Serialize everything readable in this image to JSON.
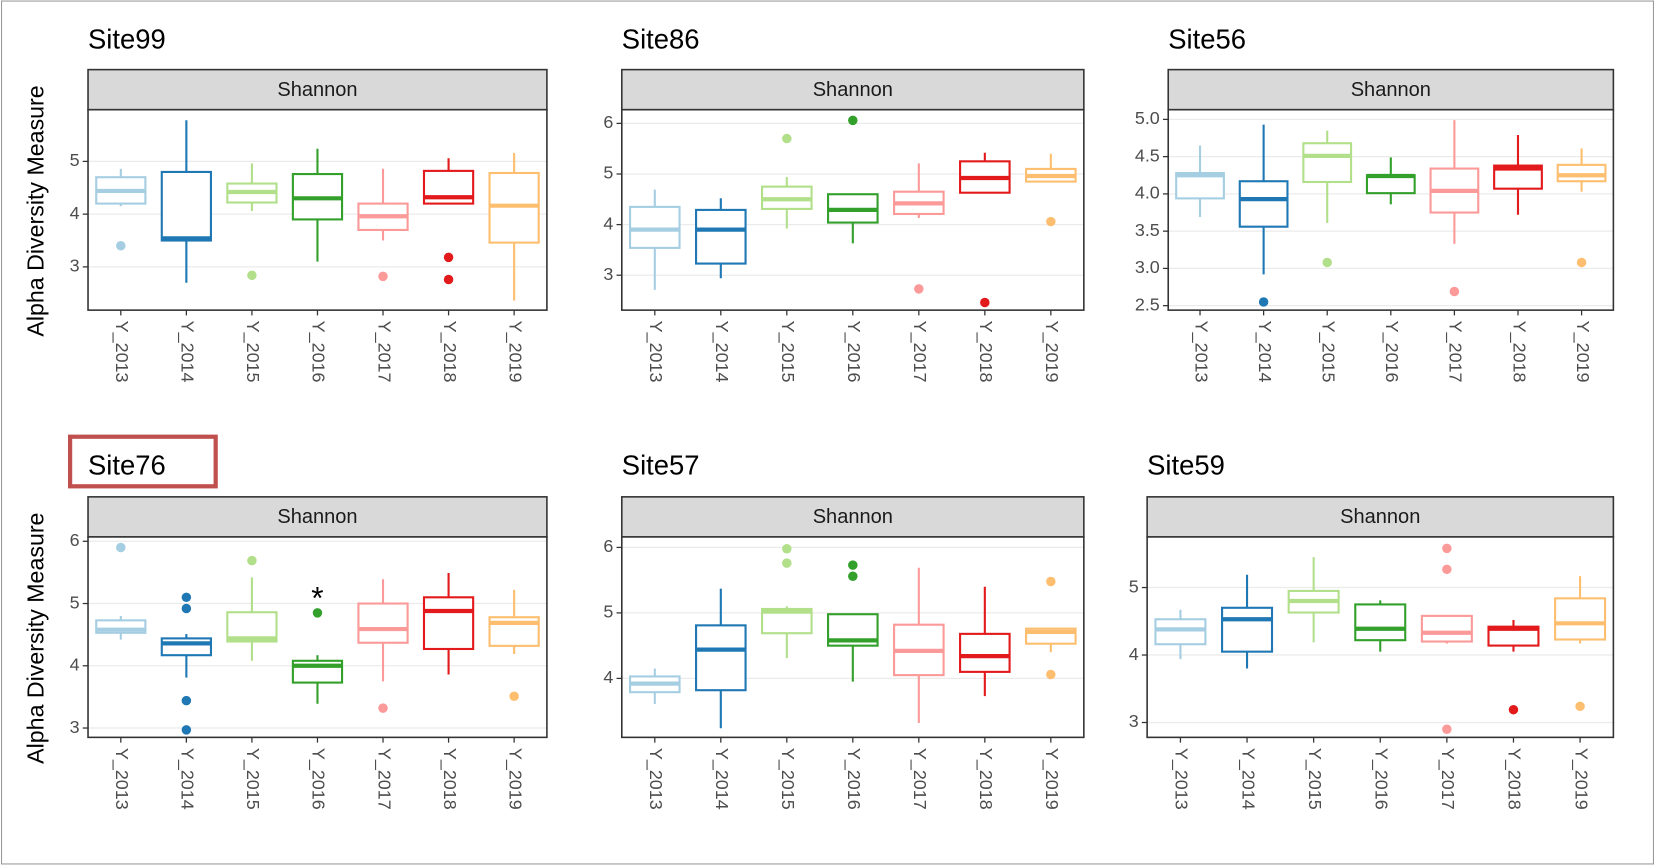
{
  "chart_data": [
    {
      "type": "box",
      "title": "Site99",
      "facet": "Shannon",
      "y_label": "Alpha Diversity Measure",
      "categories": [
        "Y_2013",
        "Y_2014",
        "Y_2015",
        "Y_2016",
        "Y_2017",
        "Y_2018",
        "Y_2019"
      ],
      "colors": [
        "#a6cee3",
        "#1f78b4",
        "#b2df8a",
        "#33a02c",
        "#fb9a99",
        "#e31a1c",
        "#fdbf6f"
      ],
      "ylim": [
        2.18,
        5.98
      ],
      "yticks": [
        3,
        4,
        5
      ],
      "grid": true,
      "boxes": [
        {
          "low": 4.15,
          "q1": 4.2,
          "median": 4.44,
          "q3": 4.7,
          "high": 4.86,
          "outliers": [
            3.4
          ]
        },
        {
          "low": 2.7,
          "q1": 3.5,
          "median": 3.54,
          "q3": 4.8,
          "high": 5.78,
          "outliers": []
        },
        {
          "low": 4.06,
          "q1": 4.22,
          "median": 4.42,
          "q3": 4.58,
          "high": 4.96,
          "outliers": [
            2.84
          ]
        },
        {
          "low": 3.1,
          "q1": 3.9,
          "median": 4.3,
          "q3": 4.76,
          "high": 5.24,
          "outliers": []
        },
        {
          "low": 3.5,
          "q1": 3.7,
          "median": 3.96,
          "q3": 4.2,
          "high": 4.86,
          "outliers": [
            2.82
          ]
        },
        {
          "low": 4.2,
          "q1": 4.2,
          "median": 4.32,
          "q3": 4.82,
          "high": 5.06,
          "outliers": [
            3.18,
            2.76
          ]
        },
        {
          "low": 2.36,
          "q1": 3.46,
          "median": 4.16,
          "q3": 4.78,
          "high": 5.16,
          "outliers": []
        }
      ]
    },
    {
      "type": "box",
      "title": "Site86",
      "facet": "Shannon",
      "categories": [
        "Y_2013",
        "Y_2014",
        "Y_2015",
        "Y_2016",
        "Y_2017",
        "Y_2018",
        "Y_2019"
      ],
      "colors": [
        "#a6cee3",
        "#1f78b4",
        "#b2df8a",
        "#33a02c",
        "#fb9a99",
        "#e31a1c",
        "#fdbf6f"
      ],
      "ylim": [
        2.31,
        6.27
      ],
      "yticks": [
        3,
        4,
        5,
        6
      ],
      "grid": true,
      "boxes": [
        {
          "low": 2.71,
          "q1": 3.54,
          "median": 3.9,
          "q3": 4.35,
          "high": 4.69,
          "outliers": []
        },
        {
          "low": 2.94,
          "q1": 3.23,
          "median": 3.9,
          "q3": 4.29,
          "high": 4.52,
          "outliers": []
        },
        {
          "low": 3.92,
          "q1": 4.31,
          "median": 4.5,
          "q3": 4.75,
          "high": 4.94,
          "outliers": [
            5.7
          ]
        },
        {
          "low": 3.63,
          "q1": 4.04,
          "median": 4.29,
          "q3": 4.6,
          "high": 4.6,
          "outliers": [
            6.06
          ]
        },
        {
          "low": 4.13,
          "q1": 4.21,
          "median": 4.42,
          "q3": 4.65,
          "high": 5.21,
          "outliers": [
            2.73
          ]
        },
        {
          "low": 4.63,
          "q1": 4.63,
          "median": 4.92,
          "q3": 5.25,
          "high": 5.42,
          "outliers": [
            2.46
          ]
        },
        {
          "low": 4.85,
          "q1": 4.85,
          "median": 4.96,
          "q3": 5.1,
          "high": 5.4,
          "outliers": [
            4.06
          ]
        }
      ]
    },
    {
      "type": "box",
      "title": "Site56",
      "facet": "Shannon",
      "categories": [
        "Y_2013",
        "Y_2014",
        "Y_2015",
        "Y_2016",
        "Y_2017",
        "Y_2018",
        "Y_2019"
      ],
      "colors": [
        "#a6cee3",
        "#1f78b4",
        "#b2df8a",
        "#33a02c",
        "#fb9a99",
        "#e31a1c",
        "#fdbf6f"
      ],
      "ylim": [
        2.44,
        5.13
      ],
      "yticks": [
        {
          "value": 2.5,
          "label": "2.5"
        },
        {
          "value": 3,
          "label": "3.0"
        },
        {
          "value": 3.5,
          "label": "3.5"
        },
        {
          "value": 4,
          "label": "4.0"
        },
        {
          "value": 4.5,
          "label": "4.5"
        },
        {
          "value": 5,
          "label": "5.0"
        }
      ],
      "grid": true,
      "boxes": [
        {
          "low": 3.69,
          "q1": 3.94,
          "median": 4.25,
          "q3": 4.28,
          "high": 4.65,
          "outliers": []
        },
        {
          "low": 2.92,
          "q1": 3.56,
          "median": 3.93,
          "q3": 4.17,
          "high": 4.93,
          "outliers": [
            2.55
          ]
        },
        {
          "low": 3.61,
          "q1": 4.16,
          "median": 4.51,
          "q3": 4.68,
          "high": 4.85,
          "outliers": [
            3.08
          ]
        },
        {
          "low": 3.86,
          "q1": 4.01,
          "median": 4.24,
          "q3": 4.25,
          "high": 4.49,
          "outliers": []
        },
        {
          "low": 3.33,
          "q1": 3.75,
          "median": 4.04,
          "q3": 4.34,
          "high": 4.99,
          "outliers": [
            2.69
          ]
        },
        {
          "low": 3.72,
          "q1": 4.07,
          "median": 4.34,
          "q3": 4.38,
          "high": 4.79,
          "outliers": []
        },
        {
          "low": 4.03,
          "q1": 4.17,
          "median": 4.25,
          "q3": 4.39,
          "high": 4.61,
          "outliers": [
            3.08
          ]
        }
      ]
    },
    {
      "type": "box",
      "title": "Site76",
      "facet": "Shannon",
      "y_label": "Alpha Diversity Measure",
      "categories": [
        "Y_2013",
        "Y_2014",
        "Y_2015",
        "Y_2016",
        "Y_2017",
        "Y_2018",
        "Y_2019"
      ],
      "colors": [
        "#a6cee3",
        "#1f78b4",
        "#b2df8a",
        "#33a02c",
        "#fb9a99",
        "#e31a1c",
        "#fdbf6f"
      ],
      "ylim": [
        2.85,
        6.07
      ],
      "yticks": [
        3,
        4,
        5,
        6
      ],
      "grid": true,
      "boxes": [
        {
          "low": 4.42,
          "q1": 4.53,
          "median": 4.58,
          "q3": 4.73,
          "high": 4.8,
          "outliers": [
            5.9
          ]
        },
        {
          "low": 3.81,
          "q1": 4.17,
          "median": 4.36,
          "q3": 4.44,
          "high": 4.51,
          "outliers": [
            5.1,
            4.92,
            3.44,
            2.97
          ]
        },
        {
          "low": 4.08,
          "q1": 4.39,
          "median": 4.44,
          "q3": 4.86,
          "high": 5.42,
          "outliers": [
            5.69
          ]
        },
        {
          "low": 3.39,
          "q1": 3.73,
          "median": 4.0,
          "q3": 4.08,
          "high": 4.17,
          "outliers": [
            4.85
          ],
          "label": "*"
        },
        {
          "low": 3.75,
          "q1": 4.37,
          "median": 4.59,
          "q3": 5.0,
          "high": 5.39,
          "outliers": [
            3.32
          ]
        },
        {
          "low": 3.86,
          "q1": 4.27,
          "median": 4.88,
          "q3": 5.1,
          "high": 5.49,
          "outliers": []
        },
        {
          "low": 4.19,
          "q1": 4.32,
          "median": 4.69,
          "q3": 4.78,
          "high": 5.22,
          "outliers": [
            3.51
          ]
        }
      ]
    },
    {
      "type": "box",
      "title": "Site57",
      "facet": "Shannon",
      "categories": [
        "Y_2013",
        "Y_2014",
        "Y_2015",
        "Y_2016",
        "Y_2017",
        "Y_2018",
        "Y_2019"
      ],
      "colors": [
        "#a6cee3",
        "#1f78b4",
        "#b2df8a",
        "#33a02c",
        "#fb9a99",
        "#e31a1c",
        "#fdbf6f"
      ],
      "ylim": [
        3.1,
        6.16
      ],
      "yticks": [
        4,
        5,
        6
      ],
      "grid": true,
      "boxes": [
        {
          "low": 3.61,
          "q1": 3.79,
          "median": 3.92,
          "q3": 4.03,
          "high": 4.15,
          "outliers": []
        },
        {
          "low": 3.24,
          "q1": 3.82,
          "median": 4.44,
          "q3": 4.81,
          "high": 5.37,
          "outliers": []
        },
        {
          "low": 4.31,
          "q1": 4.69,
          "median": 5.02,
          "q3": 5.06,
          "high": 5.1,
          "outliers": [
            5.98,
            5.76
          ]
        },
        {
          "low": 3.95,
          "q1": 4.5,
          "median": 4.58,
          "q3": 4.98,
          "high": 4.98,
          "outliers": [
            5.73,
            5.56
          ]
        },
        {
          "low": 3.32,
          "q1": 4.05,
          "median": 4.42,
          "q3": 4.82,
          "high": 5.69,
          "outliers": []
        },
        {
          "low": 3.73,
          "q1": 4.1,
          "median": 4.34,
          "q3": 4.68,
          "high": 5.4,
          "outliers": []
        },
        {
          "low": 4.4,
          "q1": 4.53,
          "median": 4.71,
          "q3": 4.76,
          "high": 4.76,
          "outliers": [
            5.48,
            4.06
          ]
        }
      ]
    },
    {
      "type": "box",
      "title": "Site59",
      "facet": "Shannon",
      "categories": [
        "Y_2013",
        "Y_2014",
        "Y_2015",
        "Y_2016",
        "Y_2017",
        "Y_2018",
        "Y_2019"
      ],
      "colors": [
        "#a6cee3",
        "#1f78b4",
        "#b2df8a",
        "#33a02c",
        "#fb9a99",
        "#e31a1c",
        "#fdbf6f"
      ],
      "ylim": [
        2.78,
        5.75
      ],
      "yticks": [
        3,
        4,
        5
      ],
      "grid": true,
      "boxes": [
        {
          "low": 3.94,
          "q1": 4.16,
          "median": 4.38,
          "q3": 4.53,
          "high": 4.67,
          "outliers": []
        },
        {
          "low": 3.8,
          "q1": 4.05,
          "median": 4.53,
          "q3": 4.7,
          "high": 5.19,
          "outliers": []
        },
        {
          "low": 4.19,
          "q1": 4.63,
          "median": 4.8,
          "q3": 4.95,
          "high": 5.45,
          "outliers": []
        },
        {
          "low": 4.05,
          "q1": 4.22,
          "median": 4.39,
          "q3": 4.75,
          "high": 4.81,
          "outliers": []
        },
        {
          "low": 4.17,
          "q1": 4.2,
          "median": 4.33,
          "q3": 4.58,
          "high": 4.58,
          "outliers": [
            5.58,
            5.27,
            2.9
          ]
        },
        {
          "low": 4.05,
          "q1": 4.14,
          "median": 4.39,
          "q3": 4.42,
          "high": 4.52,
          "outliers": [
            3.19
          ]
        },
        {
          "low": 4.17,
          "q1": 4.23,
          "median": 4.47,
          "q3": 4.84,
          "high": 5.17,
          "outliers": [
            3.24
          ]
        }
      ]
    }
  ]
}
